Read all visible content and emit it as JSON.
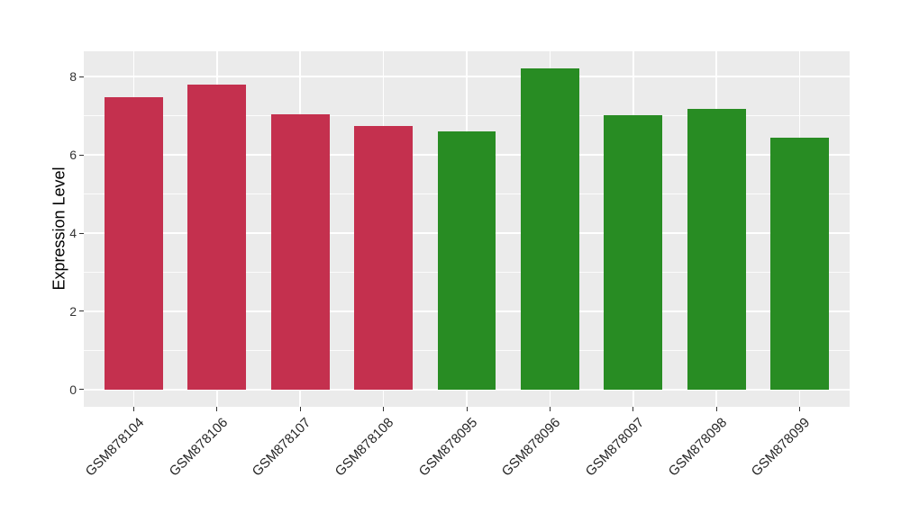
{
  "chart_data": {
    "type": "bar",
    "title": "",
    "ylabel": "Expression Level",
    "xlabel": "",
    "categories": [
      "GSM878104",
      "GSM878106",
      "GSM878107",
      "GSM878108",
      "GSM878095",
      "GSM878096",
      "GSM878097",
      "GSM878098",
      "GSM878099"
    ],
    "values": [
      7.48,
      7.79,
      7.03,
      6.74,
      6.6,
      8.22,
      7.02,
      7.18,
      6.43
    ],
    "bar_colors": [
      "#C4304E",
      "#C4304E",
      "#C4304E",
      "#C4304E",
      "#288C23",
      "#288C23",
      "#288C23",
      "#288C23",
      "#288C23"
    ],
    "yticks": [
      0,
      2,
      4,
      6,
      8
    ],
    "yticks_minor": [
      1,
      3,
      5,
      7
    ],
    "y_range": [
      -0.44,
      8.65
    ],
    "bar_width_fraction": 0.7,
    "legend": "none",
    "grid": "white major horizontal+vertical, white minor horizontal, on gray panel",
    "colors": {
      "figure_bg": "#FFFFFF",
      "panel_bg": "#EBEBEB",
      "grid": "#FFFFFF",
      "crimson_group": "#C4304E",
      "green_group": "#288C23",
      "axis_text": "#262626",
      "axis_title": "#000000",
      "tick_mark": "#333333"
    }
  }
}
